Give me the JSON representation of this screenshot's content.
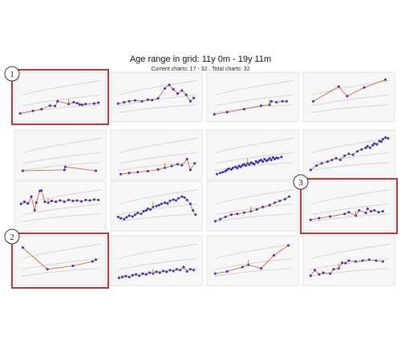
{
  "header": {
    "title": "Age range in grid: 11y 0m - 19y 11m",
    "subtitle": "Current charts:  17 - 32 . Total charts:  32"
  },
  "colors": {
    "point": "#3b2bb8",
    "line": "#d9522b",
    "marker": "#e07a18",
    "reference": "#c8c8c8",
    "highlight": "#b03a3a",
    "panel_border": "#dcdcdc",
    "panel_bg": "#f7f7f7"
  },
  "badges": [
    {
      "label": "1",
      "highlighted_chart": 1
    },
    {
      "label": "2",
      "highlighted_chart": 13
    },
    {
      "label": "3",
      "highlighted_chart": 12
    }
  ],
  "chart_data": [
    {
      "type": "line",
      "chart": 1,
      "has_marker": true,
      "x": [
        0.03,
        0.18,
        0.28,
        0.38,
        0.44,
        0.47,
        0.6,
        0.66,
        0.7,
        0.73,
        0.76,
        0.8,
        0.9,
        0.95
      ],
      "y": [
        0.12,
        0.18,
        0.22,
        0.3,
        0.29,
        0.4,
        0.34,
        0.38,
        0.36,
        0.33,
        0.32,
        0.34,
        0.35,
        0.37
      ]
    },
    {
      "type": "line",
      "chart": 2,
      "has_marker": false,
      "x": [
        0.05,
        0.12,
        0.18,
        0.25,
        0.33,
        0.4,
        0.45,
        0.52,
        0.6,
        0.65,
        0.7,
        0.75,
        0.8,
        0.85,
        0.9,
        0.94
      ],
      "y": [
        0.35,
        0.38,
        0.4,
        0.42,
        0.4,
        0.44,
        0.43,
        0.47,
        0.7,
        0.78,
        0.68,
        0.58,
        0.65,
        0.55,
        0.4,
        0.48
      ]
    },
    {
      "type": "line",
      "chart": 3,
      "has_marker": true,
      "x": [
        0.05,
        0.2,
        0.4,
        0.6,
        0.7,
        0.72,
        0.78,
        0.85,
        0.9
      ],
      "y": [
        0.1,
        0.15,
        0.22,
        0.3,
        0.32,
        0.4,
        0.38,
        0.4,
        0.4
      ]
    },
    {
      "type": "line",
      "chart": 4,
      "has_marker": false,
      "x": [
        0.08,
        0.38,
        0.48,
        0.68,
        0.93
      ],
      "y": [
        0.4,
        0.74,
        0.52,
        0.72,
        0.9
      ]
    },
    {
      "type": "line",
      "chart": 5,
      "has_marker": false,
      "x": [
        0.06,
        0.55,
        0.56,
        0.92
      ],
      "y": [
        0.13,
        0.15,
        0.22,
        0.13
      ]
    },
    {
      "type": "line",
      "chart": 6,
      "has_marker": true,
      "x": [
        0.08,
        0.18,
        0.28,
        0.4,
        0.52,
        0.6,
        0.68,
        0.75,
        0.8,
        0.86,
        0.9,
        0.95
      ],
      "y": [
        0.05,
        0.08,
        0.1,
        0.12,
        0.16,
        0.2,
        0.24,
        0.28,
        0.26,
        0.4,
        0.15,
        0.3
      ]
    },
    {
      "type": "scatter",
      "chart": 7,
      "has_marker": true,
      "x": [
        0.08,
        0.12,
        0.15,
        0.18,
        0.2,
        0.22,
        0.25,
        0.27,
        0.3,
        0.32,
        0.34,
        0.36,
        0.38,
        0.4,
        0.42,
        0.44,
        0.46,
        0.48,
        0.5,
        0.52,
        0.54,
        0.56,
        0.58,
        0.6,
        0.62,
        0.64,
        0.66,
        0.68,
        0.7,
        0.72,
        0.74,
        0.76,
        0.78,
        0.8,
        0.84
      ],
      "y": [
        0.05,
        0.08,
        0.1,
        0.12,
        0.15,
        0.18,
        0.16,
        0.2,
        0.22,
        0.19,
        0.24,
        0.22,
        0.26,
        0.28,
        0.25,
        0.3,
        0.27,
        0.32,
        0.3,
        0.28,
        0.35,
        0.32,
        0.36,
        0.38,
        0.34,
        0.4,
        0.36,
        0.38,
        0.42,
        0.38,
        0.44,
        0.4,
        0.43,
        0.42,
        0.45
      ]
    },
    {
      "type": "line",
      "chart": 8,
      "has_marker": false,
      "x": [
        0.05,
        0.12,
        0.18,
        0.25,
        0.3,
        0.35,
        0.4,
        0.45,
        0.5,
        0.55,
        0.6,
        0.65,
        0.7,
        0.72,
        0.75,
        0.78,
        0.8,
        0.83,
        0.86,
        0.88,
        0.9,
        0.93,
        0.96
      ],
      "y": [
        0.15,
        0.25,
        0.3,
        0.34,
        0.38,
        0.42,
        0.38,
        0.48,
        0.52,
        0.5,
        0.58,
        0.62,
        0.66,
        0.7,
        0.66,
        0.72,
        0.76,
        0.74,
        0.82,
        0.8,
        0.86,
        0.9,
        0.88
      ]
    },
    {
      "type": "line",
      "chart": 9,
      "has_marker": true,
      "x": [
        0.04,
        0.08,
        0.12,
        0.16,
        0.2,
        0.22,
        0.26,
        0.28,
        0.32,
        0.36,
        0.4,
        0.45,
        0.5,
        0.55,
        0.6,
        0.65,
        0.7,
        0.75,
        0.8,
        0.85,
        0.9,
        0.95
      ],
      "y": [
        0.55,
        0.6,
        0.56,
        0.72,
        0.4,
        0.58,
        0.85,
        0.86,
        0.6,
        0.58,
        0.62,
        0.6,
        0.63,
        0.6,
        0.64,
        0.62,
        0.63,
        0.61,
        0.64,
        0.63,
        0.65,
        0.64
      ]
    },
    {
      "type": "line",
      "chart": 10,
      "has_marker": true,
      "x": [
        0.05,
        0.08,
        0.12,
        0.15,
        0.18,
        0.22,
        0.25,
        0.28,
        0.32,
        0.35,
        0.38,
        0.4,
        0.43,
        0.46,
        0.5,
        0.53,
        0.56,
        0.6,
        0.63,
        0.66,
        0.7,
        0.73,
        0.76,
        0.8,
        0.83,
        0.86,
        0.9,
        0.93,
        0.96
      ],
      "y": [
        0.25,
        0.22,
        0.2,
        0.24,
        0.28,
        0.26,
        0.3,
        0.34,
        0.32,
        0.38,
        0.4,
        0.44,
        0.42,
        0.48,
        0.5,
        0.52,
        0.55,
        0.58,
        0.56,
        0.62,
        0.65,
        0.63,
        0.68,
        0.72,
        0.7,
        0.64,
        0.55,
        0.4,
        0.3
      ]
    },
    {
      "type": "line",
      "chart": 11,
      "has_marker": true,
      "x": [
        0.06,
        0.12,
        0.18,
        0.25,
        0.32,
        0.4,
        0.48,
        0.55,
        0.62,
        0.7,
        0.76,
        0.82,
        0.88,
        0.93
      ],
      "y": [
        0.15,
        0.2,
        0.25,
        0.3,
        0.32,
        0.35,
        0.38,
        0.42,
        0.48,
        0.52,
        0.58,
        0.62,
        0.66,
        0.72
      ]
    },
    {
      "type": "line",
      "chart": 12,
      "has_marker": true,
      "x": [
        0.05,
        0.15,
        0.28,
        0.45,
        0.5,
        0.58,
        0.62,
        0.7,
        0.72,
        0.76,
        0.8,
        0.85,
        0.9
      ],
      "y": [
        0.18,
        0.22,
        0.26,
        0.32,
        0.36,
        0.28,
        0.4,
        0.34,
        0.44,
        0.38,
        0.4,
        0.36,
        0.38
      ]
    },
    {
      "type": "line",
      "chart": 13,
      "has_marker": false,
      "x": [
        0.06,
        0.35,
        0.65,
        0.88,
        0.92
      ],
      "y": [
        0.8,
        0.3,
        0.38,
        0.48,
        0.52
      ]
    },
    {
      "type": "line",
      "chart": 14,
      "has_marker": true,
      "x": [
        0.06,
        0.1,
        0.14,
        0.18,
        0.22,
        0.26,
        0.3,
        0.34,
        0.38,
        0.42,
        0.46,
        0.5,
        0.54,
        0.58,
        0.62,
        0.66,
        0.7,
        0.74,
        0.78,
        0.82,
        0.86,
        0.9,
        0.94
      ],
      "y": [
        0.1,
        0.12,
        0.14,
        0.12,
        0.16,
        0.18,
        0.15,
        0.2,
        0.18,
        0.22,
        0.2,
        0.24,
        0.22,
        0.26,
        0.24,
        0.28,
        0.26,
        0.3,
        0.28,
        0.35,
        0.25,
        0.3,
        0.28
      ]
    },
    {
      "type": "line",
      "chart": 15,
      "has_marker": true,
      "x": [
        0.06,
        0.2,
        0.38,
        0.45,
        0.6,
        0.75,
        0.92
      ],
      "y": [
        0.2,
        0.25,
        0.35,
        0.4,
        0.32,
        0.62,
        0.85
      ]
    },
    {
      "type": "line",
      "chart": 16,
      "has_marker": true,
      "x": [
        0.05,
        0.1,
        0.15,
        0.2,
        0.28,
        0.32,
        0.38,
        0.42,
        0.46,
        0.5,
        0.58,
        0.66,
        0.74,
        0.82,
        0.9
      ],
      "y": [
        0.15,
        0.28,
        0.18,
        0.22,
        0.2,
        0.3,
        0.32,
        0.45,
        0.44,
        0.5,
        0.48,
        0.5,
        0.52,
        0.5,
        0.48
      ]
    }
  ]
}
